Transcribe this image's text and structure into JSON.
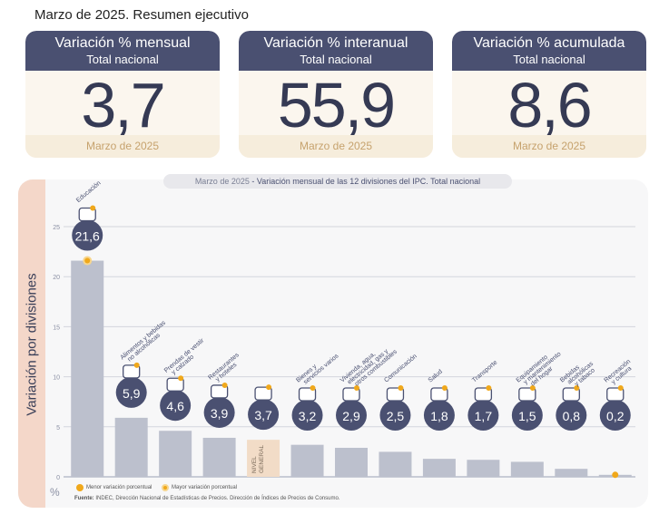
{
  "title": "Marzo de 2025. Resumen ejecutivo",
  "kpis": [
    {
      "label": "Variación % mensual",
      "sub": "Total nacional",
      "value": "3,7",
      "date": "Marzo de 2025"
    },
    {
      "label": "Variación % interanual",
      "sub": "Total nacional",
      "value": "55,9",
      "date": "Marzo de 2025"
    },
    {
      "label": "Variación % acumulada",
      "sub": "Total nacional",
      "value": "8,6",
      "date": "Marzo de 2025"
    }
  ],
  "chart_header": {
    "date": "Marzo de 2025",
    "text": " - Variación mensual de las 12 divisiones del IPC. Total nacional"
  },
  "side_label": "Variación por divisiones",
  "pct_unit": "%",
  "legend": {
    "min": "Menor variación porcentual",
    "max": "Mayor variación porcentual"
  },
  "source": {
    "label": "Fuente:",
    "text": " INDEC, Dirección Nacional de Estadísticas de Precios. Dirección de Índices de Precios de Consumo."
  },
  "colors": {
    "bar": "#bcc0cd",
    "general_bar": "#f2dcc7",
    "circle": "#4a5071",
    "accent": "#f0a81b"
  },
  "chart_data": {
    "type": "bar",
    "title": "Variación mensual de las 12 divisiones del IPC. Total nacional",
    "ylim": [
      0,
      25
    ],
    "yticks": [
      0,
      5,
      10,
      15,
      20,
      25
    ],
    "grid": true,
    "categories": [
      "Educación",
      "Alimentos y bebidas no alcohólicas",
      "Prendas de vestir y calzado",
      "Restaurantes y hoteles",
      "Nivel general",
      "Bienes y servicios varios",
      "Vivienda, agua, electricidad, gas y otros combustibles",
      "Comunicación",
      "Salud",
      "Transporte",
      "Equipamiento y mantenimiento del hogar",
      "Bebidas alcohólicas y tabaco",
      "Recreación y cultura"
    ],
    "labels_display": [
      [
        "Educación"
      ],
      [
        "Alimentos y bebidas",
        "no alcohólicas"
      ],
      [
        "Prendas de vestir",
        "y calzado"
      ],
      [
        "Restaurantes",
        "y hoteles"
      ],
      [
        "NIVEL",
        "GENERAL"
      ],
      [
        "Bienes y",
        "servicios varios"
      ],
      [
        "Vivienda, agua,",
        "electricidad, gas y",
        "otros combustibles"
      ],
      [
        "Comunicación"
      ],
      [
        "Salud"
      ],
      [
        "Transporte"
      ],
      [
        "Equipamiento",
        "y mantenimiento",
        "del hogar"
      ],
      [
        "Bebidas",
        "alcohólicas",
        "y tabaco"
      ],
      [
        "Recreación",
        "y cultura"
      ]
    ],
    "values": [
      21.6,
      5.9,
      4.6,
      3.9,
      3.7,
      3.2,
      2.9,
      2.5,
      1.8,
      1.7,
      1.5,
      0.8,
      0.2
    ],
    "value_labels": [
      "21,6",
      "5,9",
      "4,6",
      "3,9",
      "3,7",
      "3,2",
      "2,9",
      "2,5",
      "1,8",
      "1,7",
      "1,5",
      "0,8",
      "0,2"
    ],
    "icons": [
      "book-icon",
      "food-icon",
      "clothes-icon",
      "restaurant-icon",
      "shopping-basket-icon",
      "comb-icon",
      "lightbulb-icon",
      "phone-icon",
      "health-icon",
      "bus-icon",
      "air-conditioner-icon",
      "drinks-icon",
      "beach-icon"
    ],
    "highlight_max": 0,
    "highlight_min": 12,
    "general_index": 4
  }
}
